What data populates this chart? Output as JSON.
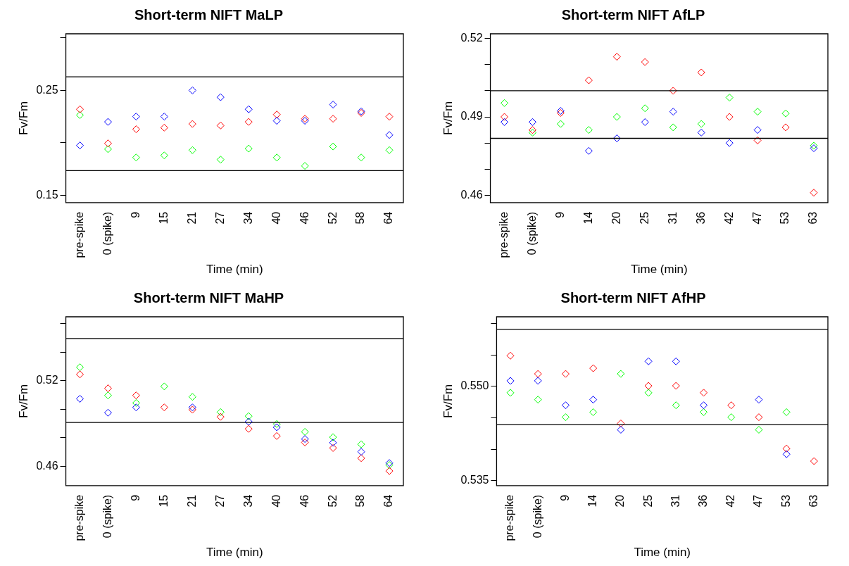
{
  "chart_data": [
    {
      "type": "scatter",
      "title": "Short-term NIFT MaLP",
      "xlabel": "Time (min)",
      "ylabel": "Fv/Fm",
      "categories": [
        "pre-spike",
        "0 (spike)",
        "9",
        "15",
        "21",
        "27",
        "34",
        "40",
        "46",
        "52",
        "58",
        "64"
      ],
      "ylim": [
        0.143,
        0.304
      ],
      "yticks": [
        0.15,
        {
          "value": 0.2,
          "label": null
        },
        0.25,
        {
          "value": 0.3,
          "label": null
        }
      ],
      "grid": false,
      "legend": false,
      "marker": "diamond",
      "ref_lines": [
        {
          "axis": "y",
          "value": 0.263,
          "color": "#000000"
        },
        {
          "axis": "y",
          "value": 0.1735,
          "color": "#000000"
        }
      ],
      "series": [
        {
          "color": "#0000ff",
          "values": [
            0.1975,
            0.22,
            0.225,
            0.225,
            0.25,
            0.2435,
            0.232,
            0.221,
            0.221,
            0.2365,
            0.23,
            0.2075
          ]
        },
        {
          "color": "#ff0000",
          "values": [
            0.232,
            0.1995,
            0.213,
            0.2145,
            0.218,
            0.2165,
            0.22,
            0.227,
            0.223,
            0.223,
            0.2285,
            0.225
          ]
        },
        {
          "color": "#00ff00",
          "values": [
            0.2265,
            0.194,
            0.186,
            0.188,
            0.193,
            0.184,
            0.1945,
            0.186,
            0.178,
            0.1965,
            0.186,
            0.193
          ]
        }
      ]
    },
    {
      "type": "scatter",
      "title": "Short-term NIFT AfLP",
      "xlabel": "Time (min)",
      "ylabel": "Fv/Fm",
      "categories": [
        "pre-spike",
        "0 (spike)",
        "9",
        "14",
        "20",
        "25",
        "31",
        "36",
        "42",
        "47",
        "53",
        "63"
      ],
      "ylim": [
        0.4572,
        0.5218
      ],
      "yticks": [
        0.46,
        {
          "value": 0.47,
          "label": null
        },
        {
          "value": 0.48,
          "label": null
        },
        0.49,
        {
          "value": 0.5,
          "label": null
        },
        {
          "value": 0.51,
          "label": null
        },
        0.52
      ],
      "grid": false,
      "legend": false,
      "marker": "diamond",
      "ref_lines": [
        {
          "axis": "y",
          "value": 0.5,
          "color": "#000000"
        },
        {
          "axis": "y",
          "value": 0.4818,
          "color": "#000000"
        }
      ],
      "series": [
        {
          "color": "#0000ff",
          "values": [
            0.488,
            0.488,
            0.4923,
            0.477,
            0.4818,
            0.488,
            0.492,
            0.484,
            0.48,
            0.485,
            null,
            0.478
          ]
        },
        {
          "color": "#ff0000",
          "values": [
            0.49,
            0.485,
            0.4915,
            0.504,
            0.513,
            0.511,
            0.5,
            0.507,
            0.49,
            0.481,
            0.486,
            0.461
          ]
        },
        {
          "color": "#00ff00",
          "values": [
            0.4953,
            0.484,
            0.4873,
            0.485,
            0.49,
            0.4933,
            0.486,
            0.4873,
            0.4974,
            0.492,
            0.4913,
            0.479
          ]
        }
      ]
    },
    {
      "type": "scatter",
      "title": "Short-term NIFT MaHP",
      "xlabel": "Time (min)",
      "ylabel": "Fv/Fm",
      "categories": [
        "pre-spike",
        "0 (spike)",
        "9",
        "15",
        "21",
        "27",
        "34",
        "40",
        "46",
        "52",
        "58",
        "64"
      ],
      "ylim": [
        0.4466,
        0.5647
      ],
      "yticks": [
        0.46,
        {
          "value": 0.48,
          "label": null
        },
        {
          "value": 0.5,
          "label": null
        },
        0.52,
        {
          "value": 0.54,
          "label": null
        },
        {
          "value": 0.56,
          "label": null
        }
      ],
      "grid": false,
      "legend": false,
      "marker": "diamond",
      "ref_lines": [
        {
          "axis": "y",
          "value": 0.5495,
          "color": "#000000"
        },
        {
          "axis": "y",
          "value": 0.4908,
          "color": "#000000"
        }
      ],
      "series": [
        {
          "color": "#0000ff",
          "values": [
            0.5073,
            0.4976,
            0.5013,
            null,
            0.5013,
            null,
            0.4913,
            0.4874,
            0.4792,
            0.4766,
            0.4703,
            0.4624
          ]
        },
        {
          "color": "#ff0000",
          "values": [
            0.5244,
            0.5147,
            0.5097,
            0.5013,
            0.4997,
            0.4947,
            0.4863,
            0.4813,
            0.4768,
            0.4729,
            0.4658,
            0.4568
          ]
        },
        {
          "color": "#00ff00",
          "values": [
            0.5294,
            0.5097,
            0.5044,
            0.516,
            0.5087,
            0.498,
            0.4952,
            0.4897,
            0.4842,
            0.4805,
            0.4755,
            0.461
          ]
        }
      ]
    },
    {
      "type": "scatter",
      "title": "Short-term NIFT AfHP",
      "xlabel": "Time (min)",
      "ylabel": "Fv/Fm",
      "categories": [
        "pre-spike",
        "0 (spike)",
        "9",
        "14",
        "20",
        "25",
        "31",
        "36",
        "42",
        "47",
        "53",
        "63"
      ],
      "ylim": [
        0.5342,
        0.5611
      ],
      "yticks": [
        {
          "value": 0.535,
          "label": "0.535"
        },
        {
          "value": 0.54,
          "label": null
        },
        {
          "value": 0.545,
          "label": null
        },
        {
          "value": 0.55,
          "label": "0.550"
        },
        {
          "value": 0.555,
          "label": null
        },
        {
          "value": 0.56,
          "label": null
        }
      ],
      "grid": false,
      "legend": false,
      "marker": "diamond",
      "ref_lines": [
        {
          "axis": "y",
          "value": 0.5591,
          "color": "#000000"
        },
        {
          "axis": "y",
          "value": 0.5439,
          "color": "#000000"
        }
      ],
      "series": [
        {
          "color": "#0000ff",
          "values": [
            0.5509,
            0.5509,
            0.547,
            0.5479,
            0.5431,
            0.554,
            0.554,
            0.547,
            null,
            0.5479,
            0.5392,
            null
          ]
        },
        {
          "color": "#ff0000",
          "values": [
            0.5549,
            0.552,
            0.552,
            0.5529,
            0.5441,
            0.5501,
            0.5501,
            0.549,
            0.547,
            0.5451,
            0.5401,
            0.5381
          ]
        },
        {
          "color": "#00ff00",
          "values": [
            0.549,
            0.5479,
            0.5451,
            0.5459,
            0.552,
            0.549,
            0.547,
            0.5459,
            0.5451,
            0.5431,
            0.5459,
            null
          ]
        }
      ]
    }
  ]
}
